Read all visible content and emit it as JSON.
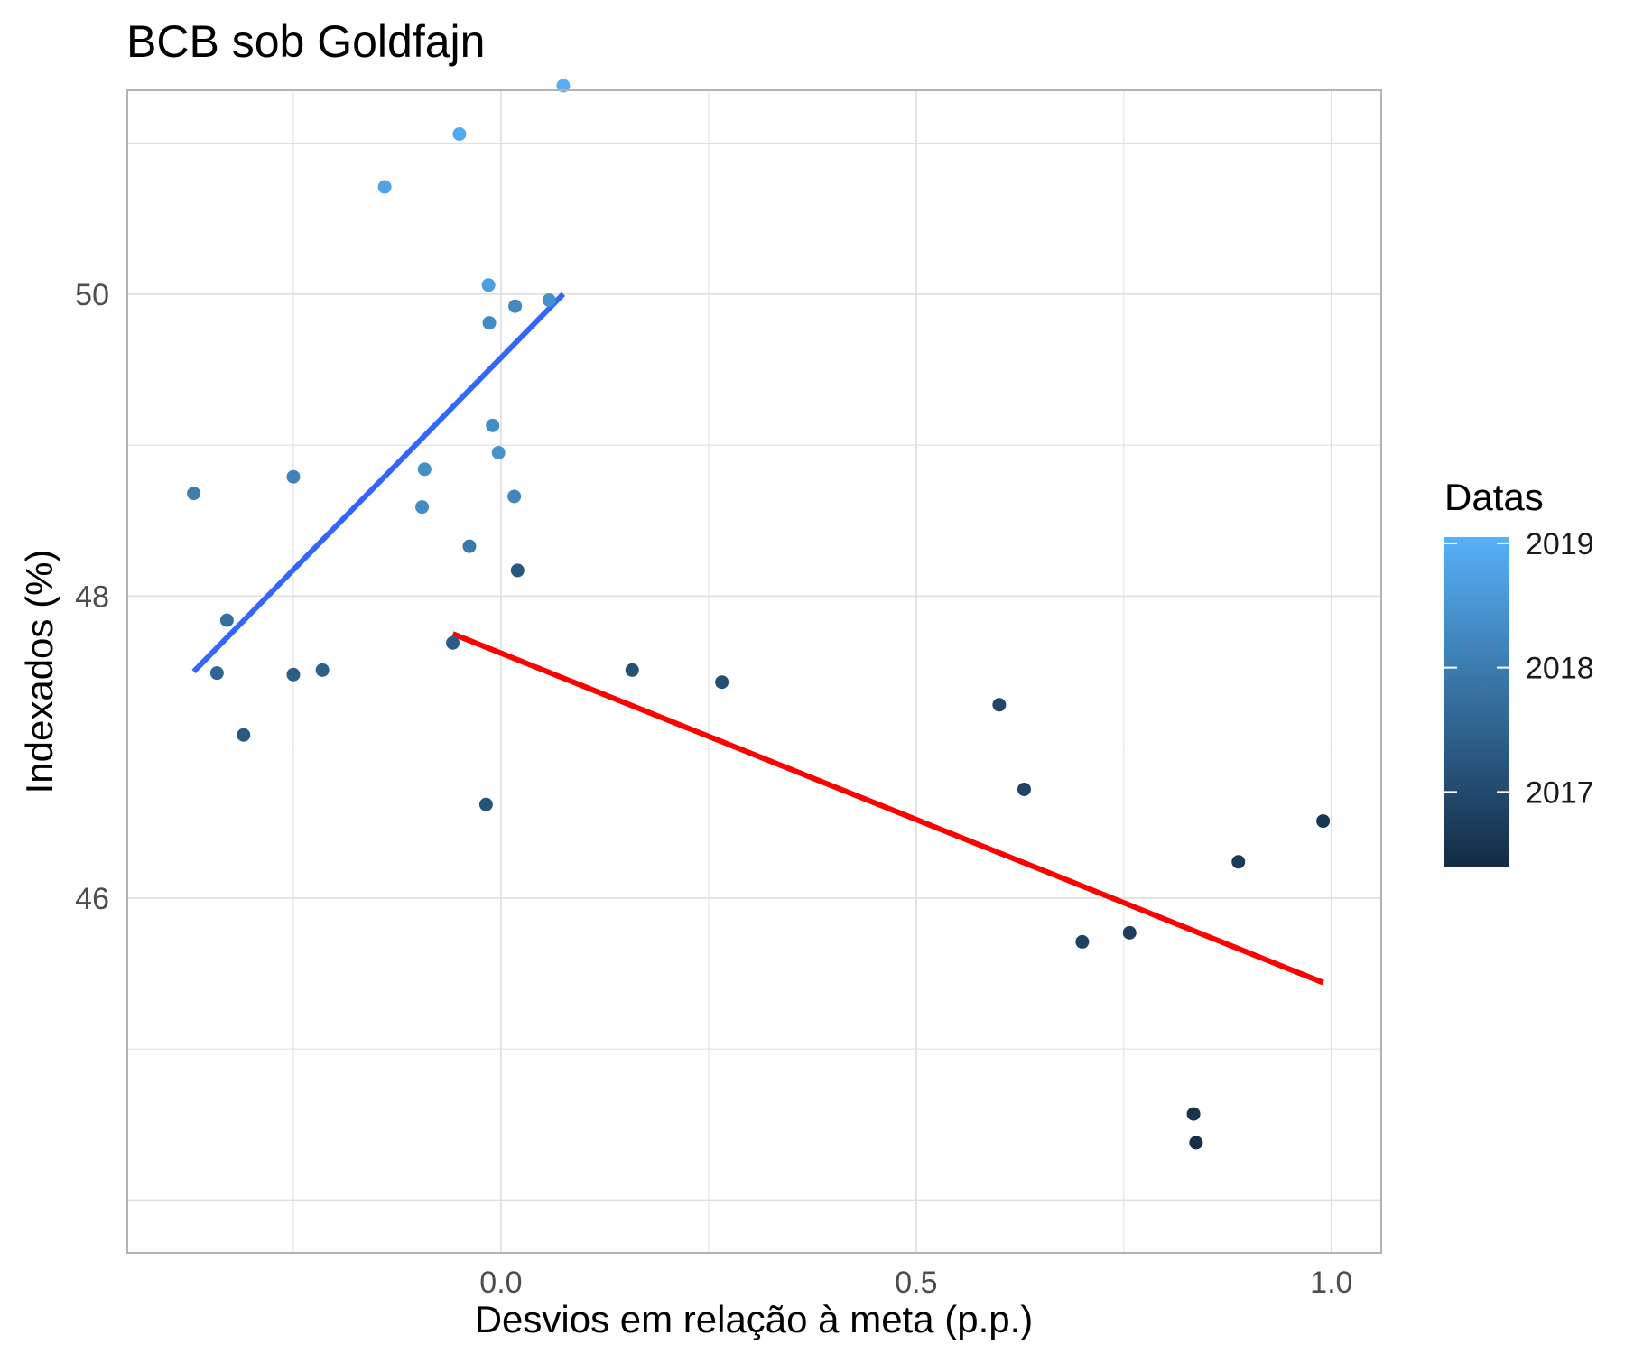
{
  "chart_data": {
    "type": "scatter",
    "title": "BCB sob Goldfajn",
    "xlabel": "Desvios em relação à meta (p.p.)",
    "ylabel": "Indexados (%)",
    "xlim": [
      -0.45,
      1.06
    ],
    "ylim": [
      43.65,
      51.35
    ],
    "x_ticks": [
      {
        "value": 0.0,
        "label": "0.0"
      },
      {
        "value": 0.5,
        "label": "0.5"
      },
      {
        "value": 1.0,
        "label": "1.0"
      }
    ],
    "y_ticks": [
      {
        "value": 46,
        "label": "46"
      },
      {
        "value": 48,
        "label": "48"
      },
      {
        "value": 50,
        "label": "50"
      }
    ],
    "grid": true,
    "legend": {
      "title": "Datas",
      "placement": "right",
      "type": "colorbar",
      "range": [
        2016.4,
        2019.05
      ],
      "color_low": "#132b43",
      "color_high": "#56b1f7",
      "ticks": [
        {
          "value": 2017,
          "label": "2017"
        },
        {
          "value": 2018,
          "label": "2018"
        },
        {
          "value": 2019,
          "label": "2019"
        }
      ]
    },
    "points": [
      {
        "x": 0.075,
        "y": 51.38,
        "date": 2019.0
      },
      {
        "x": -0.05,
        "y": 51.06,
        "date": 2018.9
      },
      {
        "x": -0.14,
        "y": 50.71,
        "date": 2018.8
      },
      {
        "x": -0.015,
        "y": 50.06,
        "date": 2018.65
      },
      {
        "x": 0.058,
        "y": 49.96,
        "date": 2018.4
      },
      {
        "x": 0.017,
        "y": 49.92,
        "date": 2018.25
      },
      {
        "x": -0.014,
        "y": 49.81,
        "date": 2018.3
      },
      {
        "x": -0.01,
        "y": 49.13,
        "date": 2018.35
      },
      {
        "x": -0.003,
        "y": 48.95,
        "date": 2018.45
      },
      {
        "x": -0.092,
        "y": 48.84,
        "date": 2018.35
      },
      {
        "x": -0.25,
        "y": 48.79,
        "date": 2018.15
      },
      {
        "x": -0.37,
        "y": 48.68,
        "date": 2018.05
      },
      {
        "x": 0.016,
        "y": 48.66,
        "date": 2018.2
      },
      {
        "x": -0.095,
        "y": 48.59,
        "date": 2018.3
      },
      {
        "x": -0.038,
        "y": 48.33,
        "date": 2017.95
      },
      {
        "x": 0.02,
        "y": 48.17,
        "date": 2017.25
      },
      {
        "x": -0.33,
        "y": 47.84,
        "date": 2017.75
      },
      {
        "x": -0.058,
        "y": 47.69,
        "date": 2017.35
      },
      {
        "x": -0.342,
        "y": 47.49,
        "date": 2017.55
      },
      {
        "x": -0.25,
        "y": 47.48,
        "date": 2017.4
      },
      {
        "x": -0.215,
        "y": 47.51,
        "date": 2017.45
      },
      {
        "x": -0.31,
        "y": 47.08,
        "date": 2017.3
      },
      {
        "x": -0.018,
        "y": 46.62,
        "date": 2017.2
      },
      {
        "x": 0.158,
        "y": 47.51,
        "date": 2017.15
      },
      {
        "x": 0.266,
        "y": 47.43,
        "date": 2017.1
      },
      {
        "x": 0.6,
        "y": 47.28,
        "date": 2016.95
      },
      {
        "x": 0.63,
        "y": 46.72,
        "date": 2016.9
      },
      {
        "x": 0.7,
        "y": 45.71,
        "date": 2016.85
      },
      {
        "x": 0.757,
        "y": 45.77,
        "date": 2016.8
      },
      {
        "x": 0.888,
        "y": 46.24,
        "date": 2016.7
      },
      {
        "x": 0.99,
        "y": 46.51,
        "date": 2016.6
      },
      {
        "x": 0.834,
        "y": 44.57,
        "date": 2016.55
      },
      {
        "x": 0.837,
        "y": 44.38,
        "date": 2016.5
      }
    ],
    "trend_lines": [
      {
        "color": "#3366ff",
        "x": [
          -0.37,
          0.075
        ],
        "y": [
          47.5,
          50.0
        ]
      },
      {
        "color": "#ff0000",
        "x": [
          -0.058,
          0.99
        ],
        "y": [
          47.75,
          45.44
        ]
      }
    ]
  }
}
